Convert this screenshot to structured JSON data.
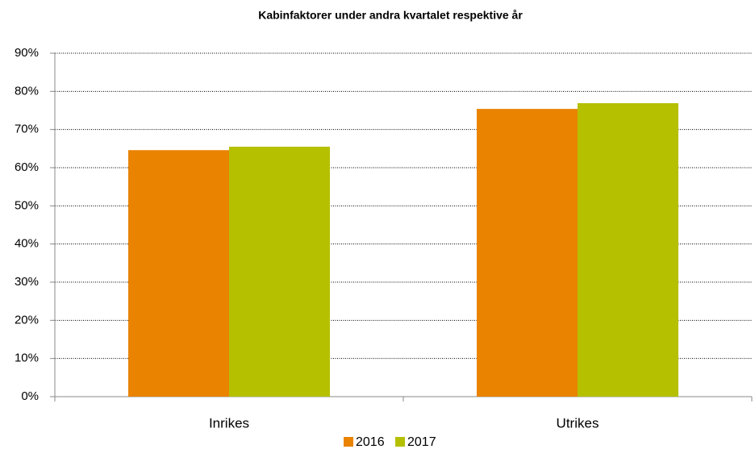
{
  "chart_data": {
    "type": "bar",
    "title": "Kabinfaktorer under andra kvartalet respektive år",
    "categories": [
      "Inrikes",
      "Utrikes"
    ],
    "series": [
      {
        "name": "2016",
        "color": "#e98300",
        "values": [
          64.6,
          75.4
        ]
      },
      {
        "name": "2017",
        "color": "#b5c000",
        "values": [
          65.5,
          76.9
        ]
      }
    ],
    "ylim": [
      0,
      90
    ],
    "yticks": [
      {
        "value": 0,
        "label": "0%"
      },
      {
        "value": 10,
        "label": "10%"
      },
      {
        "value": 20,
        "label": "20%"
      },
      {
        "value": 30,
        "label": "30%"
      },
      {
        "value": 40,
        "label": "40%"
      },
      {
        "value": 50,
        "label": "50%"
      },
      {
        "value": 60,
        "label": "60%"
      },
      {
        "value": 70,
        "label": "70%"
      },
      {
        "value": 80,
        "label": "80%"
      },
      {
        "value": 90,
        "label": "90%"
      }
    ],
    "grid": true,
    "legend": "bottom"
  }
}
